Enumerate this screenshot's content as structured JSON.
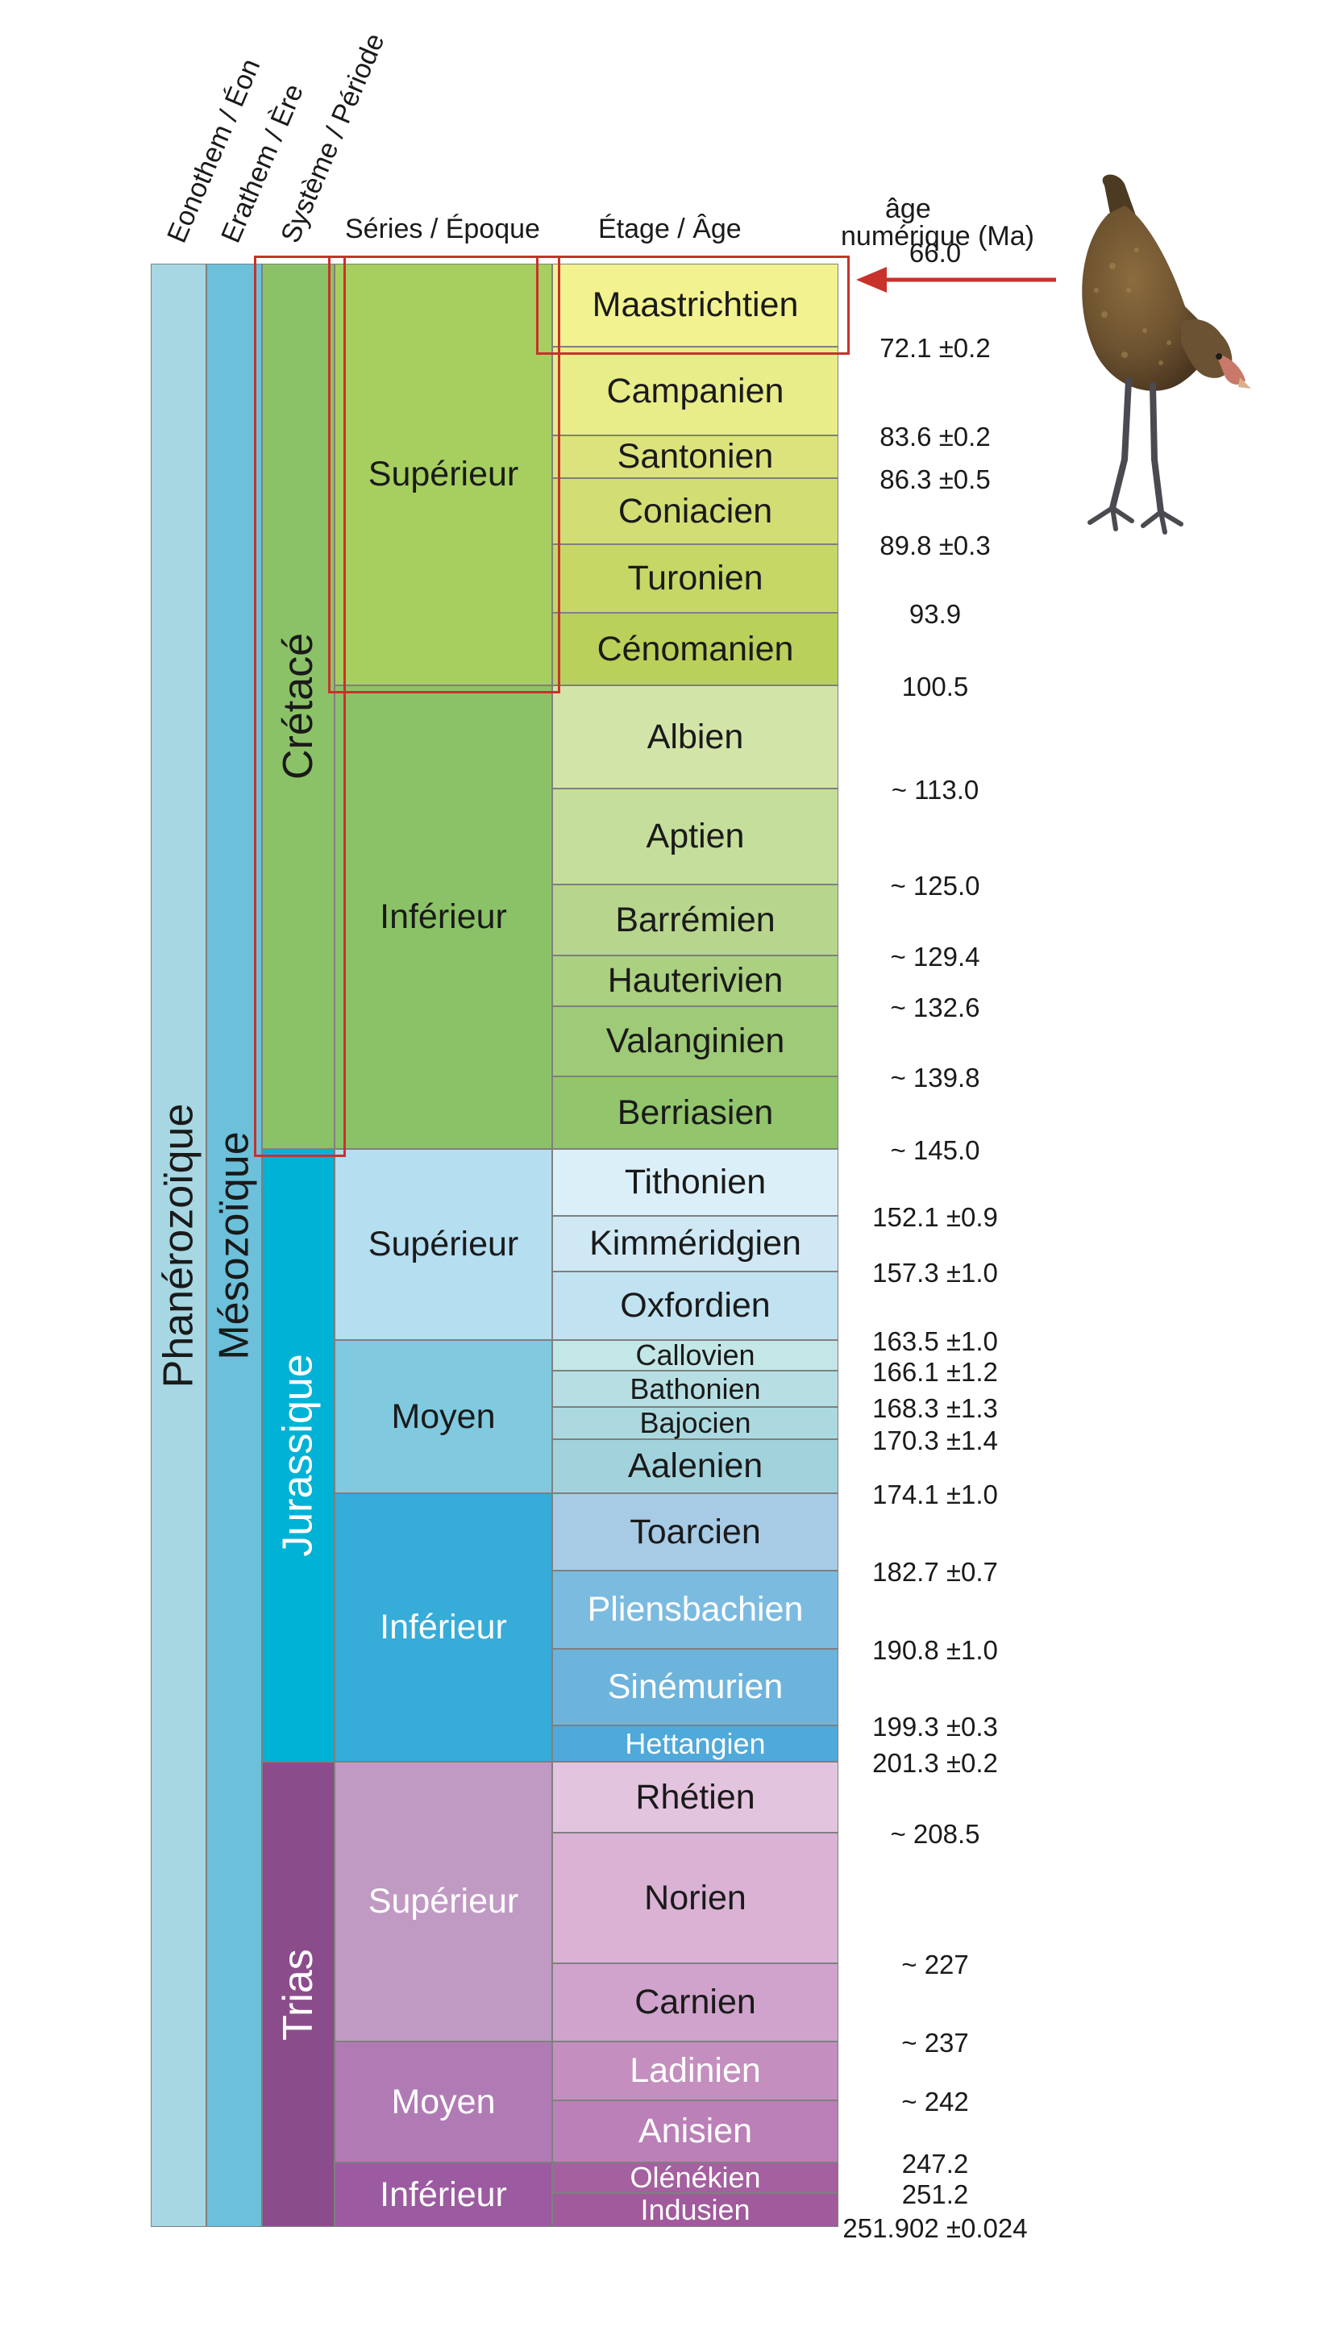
{
  "headers": {
    "eonothem": "Eonothem / Éon",
    "erathem": "Erathem / Ère",
    "systeme": "Système / Période",
    "series": "Séries / Époque",
    "etage": "Étage / Âge",
    "age_line1": "âge",
    "age_line2": "numérique (Ma)"
  },
  "eon": "Phanérozoïque",
  "era": "Mésozoïque",
  "periods": [
    {
      "name": "Crétacé",
      "top": 66.0,
      "bottom": 145.0,
      "color": "#8cc267",
      "text": "#1a1a1a"
    },
    {
      "name": "Jurassique",
      "top": 145.0,
      "bottom": 201.3,
      "color": "#00b2d6",
      "text": "#ffffff"
    },
    {
      "name": "Trias",
      "top": 201.3,
      "bottom": 251.902,
      "color": "#8b4c8c",
      "text": "#ffffff"
    }
  ],
  "series": [
    {
      "name": "Supérieur",
      "top": 66.0,
      "bottom": 100.5,
      "color": "#a6cf5f",
      "text": "#1a1a1a"
    },
    {
      "name": "Inférieur",
      "top": 100.5,
      "bottom": 145.0,
      "color": "#8cc267",
      "text": "#1a1a1a"
    },
    {
      "name": "Supérieur",
      "top": 145.0,
      "bottom": 163.5,
      "color": "#b5def0",
      "text": "#1a1a1a"
    },
    {
      "name": "Moyen",
      "top": 163.5,
      "bottom": 174.1,
      "color": "#80c9df",
      "text": "#1a1a1a"
    },
    {
      "name": "Inférieur",
      "top": 174.1,
      "bottom": 201.3,
      "color": "#36acd9",
      "text": "#ffffff"
    },
    {
      "name": "Supérieur",
      "top": 201.3,
      "bottom": 237,
      "color": "#c09ac3",
      "text": "#ffffff"
    },
    {
      "name": "Moyen",
      "top": 237,
      "bottom": 247.2,
      "color": "#b07bb4",
      "text": "#ffffff"
    },
    {
      "name": "Inférieur",
      "top": 247.2,
      "bottom": 251.902,
      "color": "#9c5aa0",
      "text": "#ffffff"
    }
  ],
  "stages": [
    {
      "name": "Maastrichtien",
      "top": 66.0,
      "bottom": 72.1,
      "color": "#f2f291",
      "text": "#1a1a1a"
    },
    {
      "name": "Campanien",
      "top": 72.1,
      "bottom": 83.6,
      "color": "#e8ec89",
      "text": "#1a1a1a"
    },
    {
      "name": "Santonien",
      "top": 83.6,
      "bottom": 86.3,
      "color": "#dce37d",
      "text": "#1a1a1a"
    },
    {
      "name": "Coniacien",
      "top": 86.3,
      "bottom": 89.8,
      "color": "#d2dd73",
      "text": "#1a1a1a"
    },
    {
      "name": "Turonien",
      "top": 89.8,
      "bottom": 93.9,
      "color": "#c6d766",
      "text": "#1a1a1a"
    },
    {
      "name": "Cénomanien",
      "top": 93.9,
      "bottom": 100.5,
      "color": "#b9d05a",
      "text": "#1a1a1a"
    },
    {
      "name": "Albien",
      "top": 100.5,
      "bottom": 113.0,
      "color": "#d3e4a9",
      "text": "#1a1a1a"
    },
    {
      "name": "Aptien",
      "top": 113.0,
      "bottom": 125.0,
      "color": "#c6de9b",
      "text": "#1a1a1a"
    },
    {
      "name": "Barrémien",
      "top": 125.0,
      "bottom": 129.4,
      "color": "#b7d58c",
      "text": "#1a1a1a"
    },
    {
      "name": "Hauterivien",
      "top": 129.4,
      "bottom": 132.6,
      "color": "#aad080",
      "text": "#1a1a1a"
    },
    {
      "name": "Valanginien",
      "top": 132.6,
      "bottom": 139.8,
      "color": "#9fca77",
      "text": "#1a1a1a"
    },
    {
      "name": "Berriasien",
      "top": 139.8,
      "bottom": 145.0,
      "color": "#92c56c",
      "text": "#1a1a1a"
    },
    {
      "name": "Tithonien",
      "top": 145.0,
      "bottom": 152.1,
      "color": "#dbeff8",
      "text": "#1a1a1a"
    },
    {
      "name": "Kimméridgien",
      "top": 152.1,
      "bottom": 157.3,
      "color": "#cfe8f4",
      "text": "#1a1a1a"
    },
    {
      "name": "Oxfordien",
      "top": 157.3,
      "bottom": 163.5,
      "color": "#c1e2f0",
      "text": "#1a1a1a"
    },
    {
      "name": "Callovien",
      "top": 163.5,
      "bottom": 166.1,
      "color": "#c3e6e6",
      "text": "#1a1a1a"
    },
    {
      "name": "Bathonien",
      "top": 166.1,
      "bottom": 168.3,
      "color": "#b7dfe3",
      "text": "#1a1a1a"
    },
    {
      "name": "Bajocien",
      "top": 168.3,
      "bottom": 170.3,
      "color": "#acd9df",
      "text": "#1a1a1a"
    },
    {
      "name": "Aalenien",
      "top": 170.3,
      "bottom": 174.1,
      "color": "#a2d3dc",
      "text": "#1a1a1a"
    },
    {
      "name": "Toarcien",
      "top": 174.1,
      "bottom": 182.7,
      "color": "#a7cbe5",
      "text": "#1a1a1a"
    },
    {
      "name": "Pliensbachien",
      "top": 182.7,
      "bottom": 190.8,
      "color": "#7cbbe0",
      "text": "#ffffff"
    },
    {
      "name": "Sinémurien",
      "top": 190.8,
      "bottom": 199.3,
      "color": "#6db4dd",
      "text": "#ffffff"
    },
    {
      "name": "Hettangien",
      "top": 199.3,
      "bottom": 201.3,
      "color": "#4fa9da",
      "text": "#ffffff"
    },
    {
      "name": "Rhétien",
      "top": 201.3,
      "bottom": 208.5,
      "color": "#e3c4de",
      "text": "#1a1a1a"
    },
    {
      "name": "Norien",
      "top": 208.5,
      "bottom": 227,
      "color": "#d9b2d4",
      "text": "#1a1a1a"
    },
    {
      "name": "Carnien",
      "top": 227,
      "bottom": 237,
      "color": "#cfa3cb",
      "text": "#1a1a1a"
    },
    {
      "name": "Ladinien",
      "top": 237,
      "bottom": 242,
      "color": "#c48fbf",
      "text": "#ffffff"
    },
    {
      "name": "Anisien",
      "top": 242,
      "bottom": 247.2,
      "color": "#bb80b7",
      "text": "#ffffff"
    },
    {
      "name": "Olénékien",
      "top": 247.2,
      "bottom": 251.2,
      "color": "#a5609f",
      "text": "#ffffff"
    },
    {
      "name": "Indusien",
      "top": 251.2,
      "bottom": 251.902,
      "color": "#a15a9c",
      "text": "#ffffff"
    }
  ],
  "boundaries": [
    {
      "label": "66.0",
      "at": 66.0
    },
    {
      "label": "72.1 ±0.2",
      "at": 72.1
    },
    {
      "label": "83.6 ±0.2",
      "at": 83.6
    },
    {
      "label": "86.3 ±0.5",
      "at": 86.3
    },
    {
      "label": "89.8 ±0.3",
      "at": 89.8
    },
    {
      "label": "93.9",
      "at": 93.9
    },
    {
      "label": "100.5",
      "at": 100.5
    },
    {
      "label": "~ 113.0",
      "at": 113.0
    },
    {
      "label": "~ 125.0",
      "at": 125.0
    },
    {
      "label": "~ 129.4",
      "at": 129.4
    },
    {
      "label": "~ 132.6",
      "at": 132.6
    },
    {
      "label": "~ 139.8",
      "at": 139.8
    },
    {
      "label": "~ 145.0",
      "at": 145.0
    },
    {
      "label": "152.1 ±0.9",
      "at": 152.1
    },
    {
      "label": "157.3 ±1.0",
      "at": 157.3
    },
    {
      "label": "163.5 ±1.0",
      "at": 163.5
    },
    {
      "label": "166.1 ±1.2",
      "at": 166.1
    },
    {
      "label": "168.3 ±1.3",
      "at": 168.3
    },
    {
      "label": "170.3 ±1.4",
      "at": 170.3
    },
    {
      "label": "174.1 ±1.0",
      "at": 174.1
    },
    {
      "label": "182.7 ±0.7",
      "at": 182.7
    },
    {
      "label": "190.8 ±1.0",
      "at": 190.8
    },
    {
      "label": "199.3 ±0.3",
      "at": 199.3
    },
    {
      "label": "201.3 ±0.2",
      "at": 201.3
    },
    {
      "label": "~ 208.5",
      "at": 208.5
    },
    {
      "label": "~ 227",
      "at": 227
    },
    {
      "label": "~ 237",
      "at": 237
    },
    {
      "label": "~ 242",
      "at": 242
    },
    {
      "label": "247.2",
      "at": 247.2
    },
    {
      "label": "251.2",
      "at": 251.2
    },
    {
      "label": "251.902 ±0.024",
      "at": 251.902
    }
  ],
  "highlights": [
    {
      "target": "period",
      "index": 0
    },
    {
      "target": "series",
      "index": 0
    },
    {
      "target": "stage",
      "index": 0
    }
  ],
  "colors": {
    "eon": "#a6d7e2",
    "era": "#6cc0da",
    "highlight": "#c9312b",
    "arrow": "#c9312b"
  },
  "icons": {
    "bird": "bird-illustration",
    "arrow": "arrow-left-icon"
  }
}
